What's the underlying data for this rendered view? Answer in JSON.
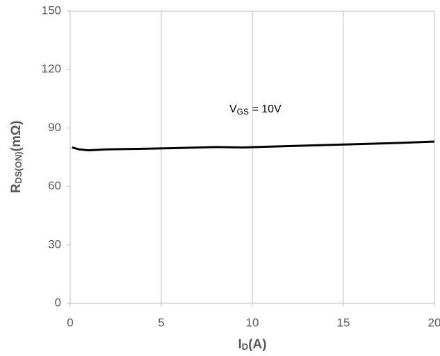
{
  "chart_data": {
    "type": "line",
    "x_label": {
      "main": "I",
      "sub": "D",
      "rest": "(A)"
    },
    "y_label": {
      "main": "R",
      "sub": "DS(ON)",
      "rest": "(mΩ)"
    },
    "annotation": {
      "main": "V",
      "sub": "GS",
      "rest": " = 10V"
    },
    "x": [
      0.1,
      0.5,
      1,
      2,
      4,
      6,
      8,
      9.5,
      12,
      15,
      18,
      20
    ],
    "series": [
      {
        "name": "VGS = 10V",
        "color": "#000000",
        "values": [
          80,
          79,
          78.5,
          79,
          79.3,
          79.7,
          80.2,
          80,
          80.7,
          81.5,
          82.3,
          83
        ]
      }
    ],
    "xlim": [
      0,
      20
    ],
    "xticks": [
      0,
      5,
      10,
      15,
      20
    ],
    "ylim": [
      0,
      150
    ],
    "yticks": [
      0,
      30,
      60,
      90,
      120,
      150
    ],
    "grid": "x"
  }
}
